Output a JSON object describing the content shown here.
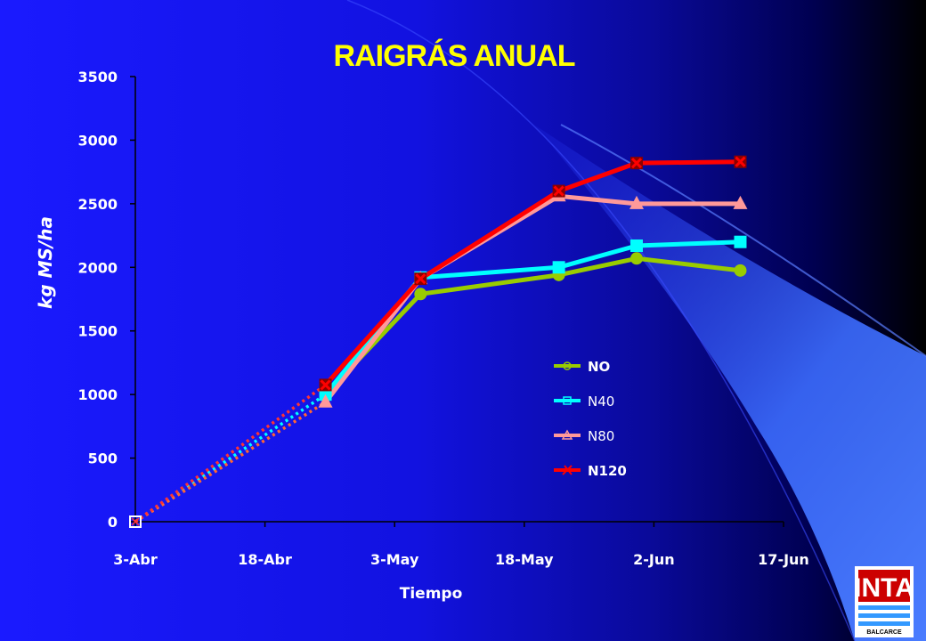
{
  "colors": {
    "background_left": "#1a1aff",
    "background_right": "#000000",
    "title": "#ffff00",
    "axis": "#000000",
    "text": "#ffffff",
    "N0": "#99cc00",
    "N40": "#00ffff",
    "N80": "#ff9999",
    "N120": "#ff0000",
    "N80_projection": "#ff6633",
    "N120_projection": "#ff3333",
    "N40_projection": "#00ffff",
    "marker_N120": "#8b0000",
    "logo_red": "#cc0000",
    "logo_blue": "#3399ff"
  },
  "chart_data": {
    "type": "line",
    "title": "RAIGRÁS ANUAL",
    "xlabel": "Tiempo",
    "ylabel": "kg MS/ha",
    "ylim": [
      0,
      3500
    ],
    "yticks": [
      0,
      500,
      1000,
      1500,
      2000,
      2500,
      3000,
      3500
    ],
    "xlim": [
      "2001-04-03",
      "2001-06-17"
    ],
    "xticks": [
      "3-Abr",
      "18-Abr",
      "3-May",
      "18-May",
      "2-Jun",
      "17-Jun"
    ],
    "grid": false,
    "legend_position": "center-right",
    "series": [
      {
        "name": "N0",
        "x": [
          "2001-04-25",
          "2001-05-06",
          "2001-05-22",
          "2001-05-31",
          "2001-06-12"
        ],
        "y": [
          1000,
          1790,
          1940,
          2070,
          1975
        ],
        "marker": "circle"
      },
      {
        "name": "N40",
        "x": [
          "2001-04-25",
          "2001-05-06",
          "2001-05-22",
          "2001-05-31",
          "2001-06-12"
        ],
        "y": [
          1000,
          1920,
          2000,
          2170,
          2200
        ],
        "marker": "square"
      },
      {
        "name": "N80",
        "x": [
          "2001-04-25",
          "2001-05-06",
          "2001-05-22",
          "2001-05-31",
          "2001-06-12"
        ],
        "y": [
          940,
          1910,
          2560,
          2500,
          2500
        ],
        "marker": "triangle"
      },
      {
        "name": "N120",
        "x": [
          "2001-04-25",
          "2001-05-06",
          "2001-05-22",
          "2001-05-31",
          "2001-06-12"
        ],
        "y": [
          1075,
          1910,
          2600,
          2820,
          2830
        ],
        "marker": "x"
      }
    ],
    "projections": [
      {
        "series": "N40",
        "x": [
          "2001-04-03",
          "2001-04-25"
        ],
        "y": [
          0,
          1000
        ]
      },
      {
        "series": "N80",
        "x": [
          "2001-04-03",
          "2001-04-25"
        ],
        "y": [
          0,
          940
        ]
      },
      {
        "series": "N120",
        "x": [
          "2001-04-03",
          "2001-04-25"
        ],
        "y": [
          0,
          1075
        ]
      }
    ],
    "origin_marker": {
      "x": "2001-04-03",
      "y": 0
    },
    "legend": [
      "NO",
      "N40",
      "N80",
      "N120"
    ]
  },
  "logo": {
    "text": "INTA",
    "subtitle": "BALCARCE"
  }
}
